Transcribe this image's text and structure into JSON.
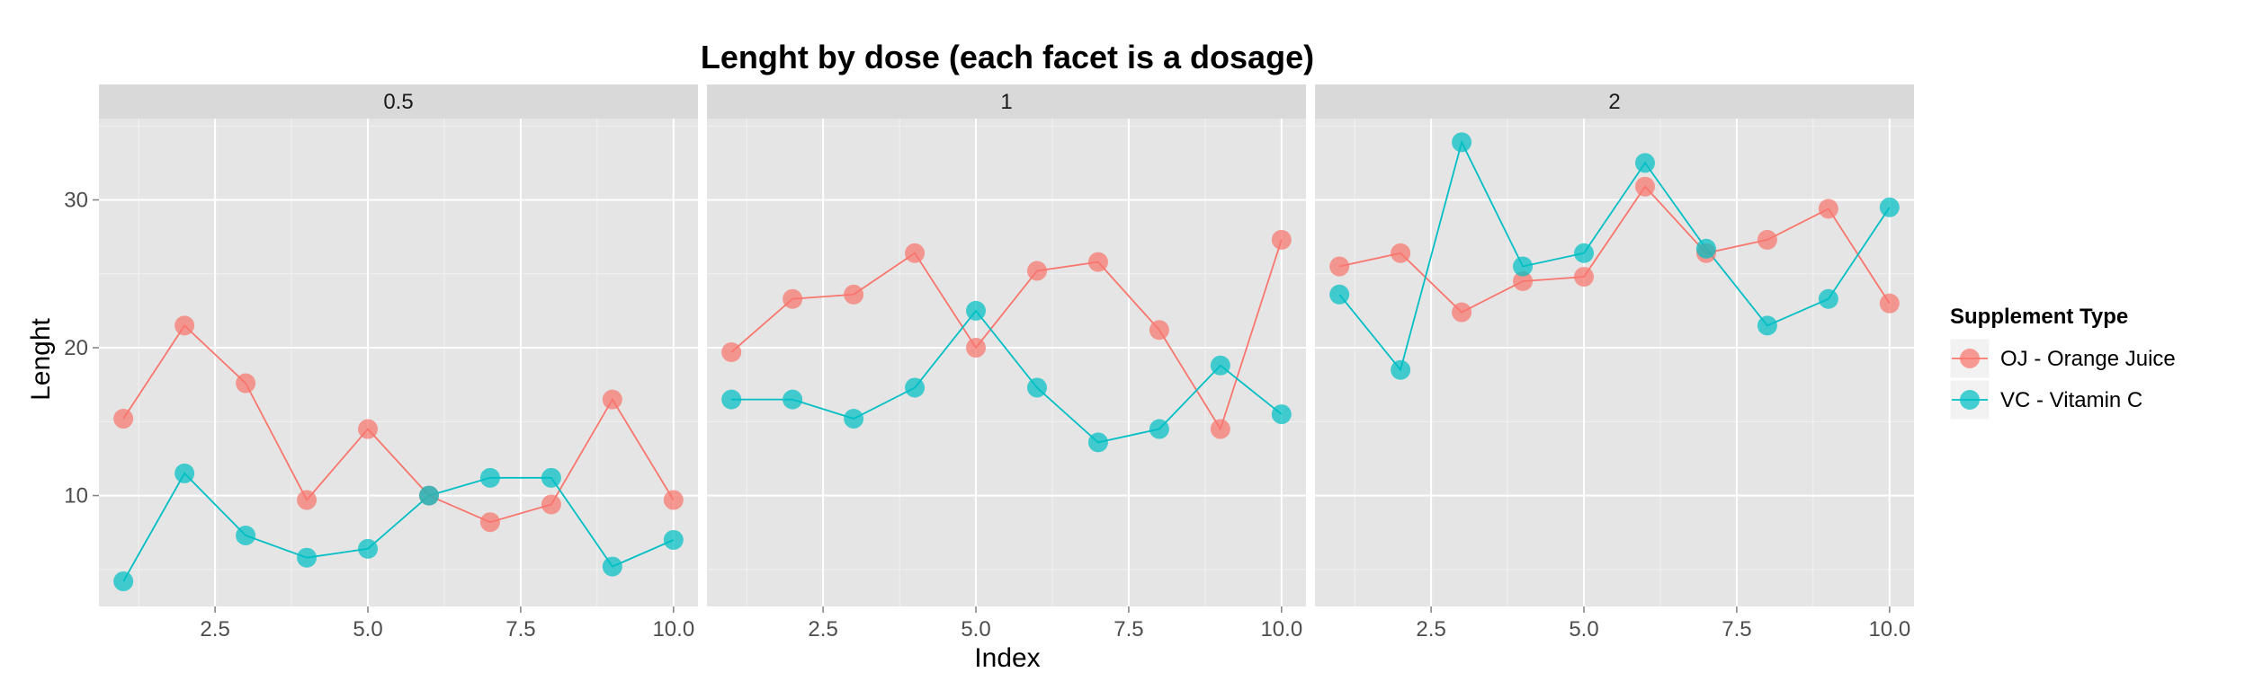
{
  "chart_data": {
    "type": "line",
    "title": "Lenght by dose (each facet is a dosage)",
    "xlabel": "Index",
    "ylabel": "Lenght",
    "xlim": [
      0.6,
      10.4
    ],
    "ylim": [
      2.5,
      35.5
    ],
    "x_ticks": [
      2.5,
      5.0,
      7.5,
      10.0
    ],
    "x_tick_labels": [
      "2.5",
      "5.0",
      "7.5",
      "10.0"
    ],
    "y_ticks": [
      10,
      20,
      30
    ],
    "y_tick_labels": [
      "10",
      "20",
      "30"
    ],
    "grid": true,
    "legend_position": "right",
    "legend_title": "Supplement Type",
    "colors": {
      "OJ": "#F8766D",
      "VC": "#00BFC4"
    },
    "facets": [
      {
        "label": "0.5",
        "x": [
          1,
          2,
          3,
          4,
          5,
          6,
          7,
          8,
          9,
          10
        ],
        "series": [
          {
            "name": "OJ - Orange Juice",
            "key": "OJ",
            "values": [
              15.2,
              21.5,
              17.6,
              9.7,
              14.5,
              10.0,
              8.2,
              9.4,
              16.5,
              9.7
            ]
          },
          {
            "name": "VC - Vitamin C",
            "key": "VC",
            "values": [
              4.2,
              11.5,
              7.3,
              5.8,
              6.4,
              10.0,
              11.2,
              11.2,
              5.2,
              7.0
            ]
          }
        ]
      },
      {
        "label": "1",
        "x": [
          1,
          2,
          3,
          4,
          5,
          6,
          7,
          8,
          9,
          10
        ],
        "series": [
          {
            "name": "OJ - Orange Juice",
            "key": "OJ",
            "values": [
              19.7,
              23.3,
              23.6,
              26.4,
              20.0,
              25.2,
              25.8,
              21.2,
              14.5,
              27.3
            ]
          },
          {
            "name": "VC - Vitamin C",
            "key": "VC",
            "values": [
              16.5,
              16.5,
              15.2,
              17.3,
              22.5,
              17.3,
              13.6,
              14.5,
              18.8,
              15.5
            ]
          }
        ]
      },
      {
        "label": "2",
        "x": [
          1,
          2,
          3,
          4,
          5,
          6,
          7,
          8,
          9,
          10
        ],
        "series": [
          {
            "name": "OJ - Orange Juice",
            "key": "OJ",
            "values": [
              25.5,
              26.4,
              22.4,
              24.5,
              24.8,
              30.9,
              26.4,
              27.3,
              29.4,
              23.0
            ]
          },
          {
            "name": "VC - Vitamin C",
            "key": "VC",
            "values": [
              23.6,
              18.5,
              33.9,
              25.5,
              26.4,
              32.5,
              26.7,
              21.5,
              23.3,
              29.5
            ]
          }
        ]
      }
    ]
  }
}
